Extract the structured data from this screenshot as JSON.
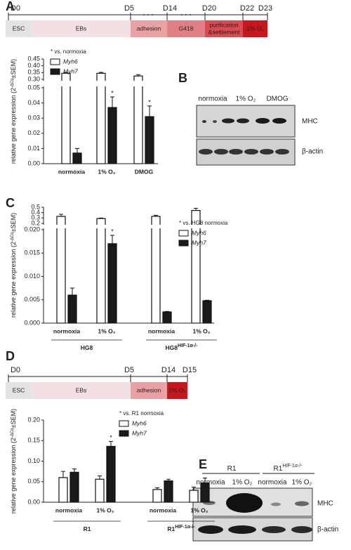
{
  "panel_a_timeline": {
    "letter": "A",
    "days": [
      "D0",
      "D5",
      "D14",
      "D20",
      "D22",
      "D23"
    ],
    "stages": [
      {
        "lines": [
          "ESC"
        ],
        "color": "#e3e3e3"
      },
      {
        "lines": [
          "EBs"
        ],
        "color": "#f3e0e2"
      },
      {
        "lines": [
          "adhesion"
        ],
        "color": "#e9a1a4"
      },
      {
        "lines": [
          "G418"
        ],
        "color": "#e08084"
      },
      {
        "lines": [
          "purification",
          "&settlement"
        ],
        "color": "#da4a50"
      },
      {
        "lines": [
          "1% O₂"
        ],
        "color": "#c8161d"
      }
    ]
  },
  "panel_b_blot": {
    "letter": "B",
    "lanes": [
      "normoxia",
      "1% O₂",
      "DMOG"
    ],
    "rows": [
      "MHC",
      "β-actin"
    ]
  },
  "chart_data": [
    {
      "type": "bar",
      "axis_label": {
        "text": "relative gene expression (2",
        "sup": "-ΔCq",
        "end": "±SEM)"
      },
      "note": "* vs. normoxia",
      "categories": [
        "normoxia",
        "1% O₂",
        "DMOG"
      ],
      "series": [
        {
          "name": "Myh6",
          "color": "#ffffff",
          "values": [
            0.345,
            0.345,
            0.325
          ],
          "errors": [
            0.006,
            0.007,
            0.01
          ]
        },
        {
          "name": "Myh7",
          "color": "#1a1a1a",
          "values": [
            0.007,
            0.037,
            0.031
          ],
          "errors": [
            0.003,
            0.007,
            0.007
          ],
          "significance": [
            null,
            "*",
            "*"
          ]
        }
      ],
      "ylim": [
        0,
        0.05
      ],
      "yticks": [
        {
          "value": 0,
          "label": "0.00"
        },
        0.01,
        0.02,
        0.03,
        0.04,
        0.05
      ],
      "ylim_upper": [
        0.3,
        0.45
      ],
      "yticks_upper": [
        {
          "value": 0.3,
          "label": "0.30"
        },
        0.35,
        {
          "value": 0.4,
          "label": "0.40"
        },
        0.45
      ]
    },
    {
      "type": "bar",
      "letter": "C",
      "axis_label": {
        "text": "relative gene expression (2",
        "sup": "-ΔCq",
        "end": "±SEM)"
      },
      "note": "* vs. HG8 normoxia",
      "categories": [
        "normoxia",
        "1% O₂",
        "normoxia",
        "1% O₂"
      ],
      "groups": [
        {
          "label": "HG8"
        },
        {
          "label": "HG8",
          "sup": "HIF-1α-/-"
        }
      ],
      "series": [
        {
          "name": "Myh6",
          "color": "#ffffff",
          "values": [
            0.33,
            0.29,
            0.33,
            0.44
          ],
          "errors": [
            0.04,
            0.01,
            0.02,
            0.04
          ]
        },
        {
          "name": "Myh7",
          "color": "#1a1a1a",
          "values": [
            0.006,
            0.017,
            0.0024,
            0.0048
          ],
          "errors": [
            0.0015,
            0.0018,
            0.0001,
            0.0001
          ],
          "significance": [
            null,
            "*",
            null,
            null
          ]
        }
      ],
      "ylim": [
        0,
        0.02
      ],
      "yticks": [
        {
          "value": 0,
          "label": "0.000"
        },
        0.005,
        {
          "value": 0.01,
          "label": "0.010"
        },
        0.015,
        {
          "value": 0.02,
          "label": "0.020"
        }
      ],
      "ylim_upper": [
        0.2,
        0.5
      ],
      "yticks_upper": [
        0.2,
        0.3,
        0.4,
        0.5
      ]
    },
    {
      "type": "bar",
      "axis_label": {
        "text": "relative gene expression (2",
        "sup": "-ΔCq",
        "end": "±SEM)"
      },
      "note": "* vs. R1 normoxia",
      "categories": [
        "normoxia",
        "1% O₂",
        "normoxia",
        "1% O₂"
      ],
      "groups": [
        {
          "label": "R1"
        },
        {
          "label": "R1",
          "sup": "HIF-1α-/-"
        }
      ],
      "series": [
        {
          "name": "Myh6",
          "color": "#ffffff",
          "values": [
            0.06,
            0.056,
            0.031,
            0.029
          ],
          "errors": [
            0.015,
            0.008,
            0.004,
            0.008
          ]
        },
        {
          "name": "Myh7",
          "color": "#1a1a1a",
          "values": [
            0.073,
            0.136,
            0.052,
            0.047
          ],
          "errors": [
            0.008,
            0.012,
            0.004,
            0.012
          ],
          "significance": [
            null,
            "*",
            null,
            null
          ]
        }
      ],
      "ylim": [
        0,
        0.2
      ],
      "yticks": [
        {
          "value": 0,
          "label": "0.00"
        },
        0.05,
        {
          "value": 0.1,
          "label": "0.10"
        },
        0.15,
        {
          "value": 0.2,
          "label": "0.20"
        }
      ]
    }
  ],
  "panel_d_timeline": {
    "letter": "D",
    "days": [
      "D0",
      "D5",
      "D14",
      "D15"
    ],
    "stages": [
      {
        "lines": [
          "ESC"
        ],
        "color": "#e3e3e3"
      },
      {
        "lines": [
          "EBs"
        ],
        "color": "#f3e0e2"
      },
      {
        "lines": [
          "adhesion"
        ],
        "color": "#e9a1a4"
      },
      {
        "lines": [
          "1% O₂"
        ],
        "color": "#c8161d"
      }
    ]
  },
  "panel_e_blot": {
    "letter": "E",
    "groups": [
      {
        "label": "R1"
      },
      {
        "label": "R1",
        "sup": "HIF-1α-/-"
      }
    ],
    "lanes": [
      "normoxia",
      "1% O₂",
      "normoxia",
      "1% O₂"
    ],
    "rows": [
      "MHC",
      "β-actin"
    ]
  }
}
